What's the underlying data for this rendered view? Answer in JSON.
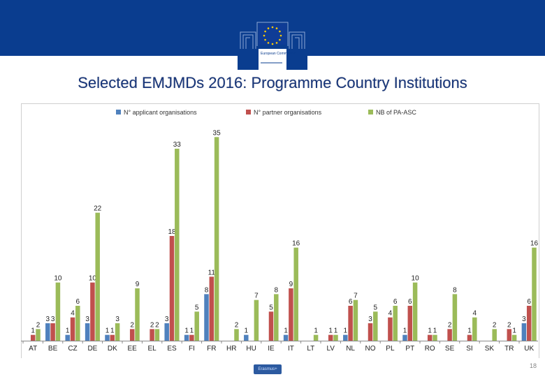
{
  "header": {
    "logo_text": "European Commission",
    "title": "Selected EMJMDs 2016: Programme Country Institutions"
  },
  "footer": {
    "badge_text": "Erasmus+",
    "page_number": "18"
  },
  "colors": {
    "banner": "#0a3d8f",
    "series_blue": "#4f81bd",
    "series_red": "#c0504d",
    "series_green": "#9bbb59"
  },
  "chart_data": {
    "type": "bar",
    "title": "",
    "xlabel": "",
    "ylabel": "",
    "ylim": [
      0,
      36
    ],
    "legend_position": "top",
    "categories": [
      "AT",
      "BE",
      "CZ",
      "DE",
      "DK",
      "EE",
      "EL",
      "ES",
      "FI",
      "FR",
      "HR",
      "HU",
      "IE",
      "IT",
      "LT",
      "LV",
      "NL",
      "NO",
      "PL",
      "PT",
      "RO",
      "SE",
      "SI",
      "SK",
      "TR",
      "UK"
    ],
    "series": [
      {
        "name": "N° applicant organisations",
        "color": "#4f81bd",
        "values": [
          null,
          3,
          1,
          3,
          1,
          null,
          null,
          3,
          1,
          8,
          null,
          1,
          null,
          1,
          null,
          null,
          1,
          null,
          null,
          1,
          null,
          null,
          null,
          null,
          null,
          3
        ]
      },
      {
        "name": "N° partner organisations",
        "color": "#c0504d",
        "values": [
          1,
          3,
          4,
          10,
          1,
          2,
          2,
          18,
          1,
          11,
          null,
          null,
          5,
          9,
          null,
          1,
          6,
          3,
          4,
          6,
          1,
          2,
          1,
          null,
          2,
          6
        ]
      },
      {
        "name": "NB of PA-ASC",
        "color": "#9bbb59",
        "values": [
          2,
          10,
          6,
          22,
          3,
          9,
          2,
          33,
          5,
          35,
          2,
          7,
          8,
          16,
          1,
          1,
          7,
          5,
          6,
          10,
          1,
          8,
          4,
          2,
          1,
          16
        ]
      }
    ]
  }
}
